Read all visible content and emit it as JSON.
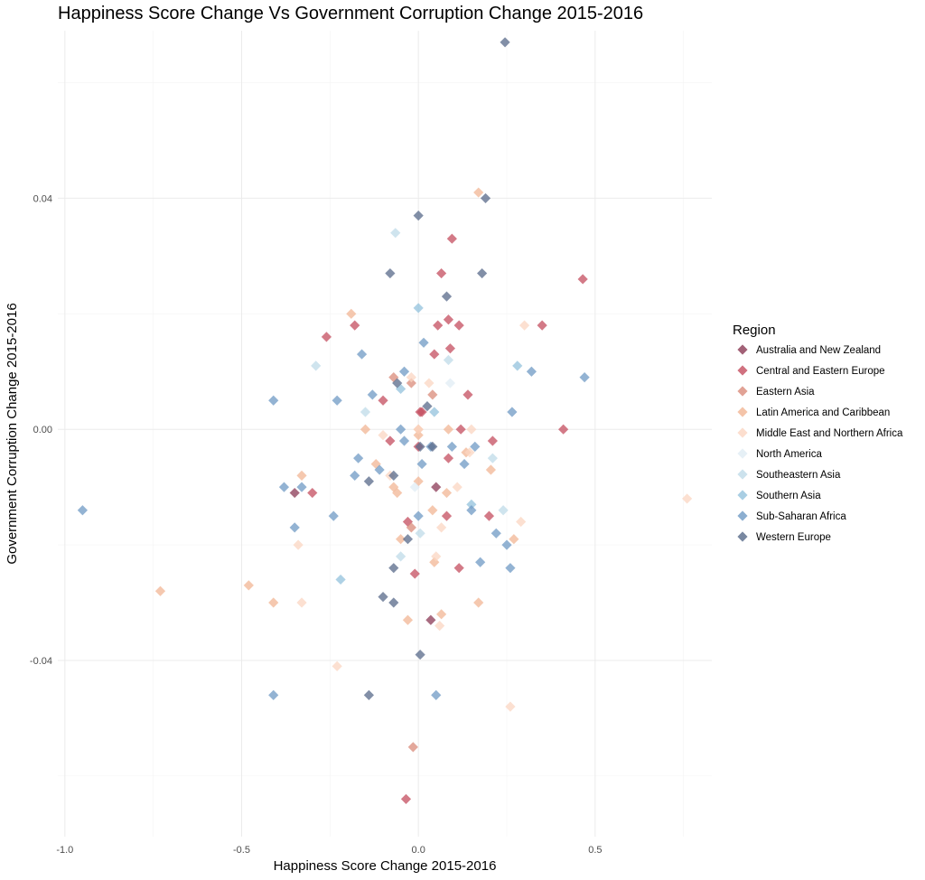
{
  "chart_data": {
    "type": "scatter",
    "title": "Happiness Score Change Vs Government Corruption Change 2015-2016",
    "xlabel": "Happiness Score Change 2015-2016",
    "ylabel": "Government Corruption Change 2015-2016",
    "xlim": [
      -1.02,
      0.83
    ],
    "ylim": [
      -0.0705,
      0.069
    ],
    "x_ticks": [
      -1.0,
      -0.5,
      0.0,
      0.5
    ],
    "x_tick_labels": [
      "-1.0",
      "-0.5",
      "0.0",
      "0.5"
    ],
    "y_ticks": [
      -0.04,
      0.0,
      0.04
    ],
    "y_tick_labels": [
      "-0.04",
      "0.00",
      "0.04"
    ],
    "grid": true,
    "marker": "diamond",
    "legend": {
      "title": "Region",
      "position": "right"
    },
    "series": [
      {
        "name": "Australia and New Zealand",
        "color": "#8b3a55",
        "points": [
          [
            -0.35,
            -0.011
          ],
          [
            0.05,
            -0.01
          ],
          [
            0.035,
            -0.033
          ]
        ]
      },
      {
        "name": "Central and Eastern Europe",
        "color": "#c44d5f",
        "points": [
          [
            -0.26,
            0.016
          ],
          [
            -0.18,
            0.018
          ],
          [
            -0.3,
            -0.011
          ],
          [
            -0.1,
            0.005
          ],
          [
            -0.08,
            -0.002
          ],
          [
            0.005,
            0.003
          ],
          [
            0.01,
            0.003
          ],
          [
            0.0,
            -0.003
          ],
          [
            0.045,
            0.013
          ],
          [
            0.055,
            0.018
          ],
          [
            0.065,
            0.027
          ],
          [
            0.085,
            0.019
          ],
          [
            0.09,
            0.014
          ],
          [
            0.095,
            0.033
          ],
          [
            0.115,
            0.018
          ],
          [
            0.085,
            -0.005
          ],
          [
            0.12,
            -0.0
          ],
          [
            0.14,
            0.006
          ],
          [
            0.21,
            -0.002
          ],
          [
            0.2,
            -0.015
          ],
          [
            0.35,
            0.018
          ],
          [
            0.41,
            0.0
          ],
          [
            0.465,
            0.026
          ],
          [
            0.115,
            -0.024
          ],
          [
            -0.01,
            -0.025
          ],
          [
            -0.03,
            -0.016
          ],
          [
            -0.035,
            -0.064
          ],
          [
            0.08,
            -0.015
          ]
        ]
      },
      {
        "name": "Eastern Asia",
        "color": "#d98b7a",
        "points": [
          [
            -0.07,
            0.009
          ],
          [
            -0.02,
            0.008
          ],
          [
            -0.015,
            -0.055
          ],
          [
            -0.02,
            -0.017
          ],
          [
            0.04,
            0.006
          ]
        ]
      },
      {
        "name": "Latin America and Caribbean",
        "color": "#f1b594",
        "points": [
          [
            -0.73,
            -0.028
          ],
          [
            -0.48,
            -0.027
          ],
          [
            -0.41,
            -0.03
          ],
          [
            -0.33,
            -0.008
          ],
          [
            -0.19,
            0.02
          ],
          [
            -0.15,
            -0.0
          ],
          [
            -0.12,
            -0.006
          ],
          [
            -0.07,
            -0.01
          ],
          [
            -0.06,
            -0.011
          ],
          [
            -0.05,
            -0.019
          ],
          [
            -0.03,
            -0.033
          ],
          [
            0.0,
            -0.001
          ],
          [
            0.0,
            0.0
          ],
          [
            0.0,
            -0.009
          ],
          [
            0.04,
            -0.014
          ],
          [
            0.065,
            -0.032
          ],
          [
            0.08,
            -0.011
          ],
          [
            0.085,
            0.0
          ],
          [
            0.135,
            -0.004
          ],
          [
            0.17,
            0.041
          ],
          [
            0.17,
            -0.03
          ],
          [
            0.205,
            -0.007
          ],
          [
            0.27,
            -0.019
          ],
          [
            0.045,
            -0.023
          ]
        ]
      },
      {
        "name": "Middle East and Northern Africa",
        "color": "#fbd6c2",
        "points": [
          [
            -0.34,
            -0.02
          ],
          [
            -0.33,
            -0.03
          ],
          [
            -0.23,
            -0.041
          ],
          [
            -0.1,
            -0.001
          ],
          [
            -0.08,
            -0.008
          ],
          [
            -0.02,
            0.009
          ],
          [
            0.0,
            -0.0
          ],
          [
            0.05,
            -0.022
          ],
          [
            0.06,
            -0.034
          ],
          [
            0.065,
            -0.017
          ],
          [
            0.11,
            -0.01
          ],
          [
            0.145,
            -0.004
          ],
          [
            0.15,
            0.0
          ],
          [
            0.26,
            -0.048
          ],
          [
            0.29,
            -0.016
          ],
          [
            0.3,
            0.018
          ],
          [
            0.76,
            -0.012
          ],
          [
            0.03,
            0.008
          ]
        ]
      },
      {
        "name": "North America",
        "color": "#e0ecf4",
        "points": [
          [
            0.09,
            0.008
          ],
          [
            -0.01,
            -0.01
          ]
        ]
      },
      {
        "name": "Southeastern Asia",
        "color": "#bfdbe8",
        "points": [
          [
            -0.29,
            0.011
          ],
          [
            -0.15,
            0.003
          ],
          [
            -0.065,
            0.034
          ],
          [
            -0.05,
            -0.022
          ],
          [
            0.005,
            -0.018
          ],
          [
            0.085,
            0.012
          ],
          [
            0.21,
            -0.005
          ],
          [
            0.24,
            -0.014
          ]
        ]
      },
      {
        "name": "Southern Asia",
        "color": "#93c2dc",
        "points": [
          [
            -0.22,
            -0.026
          ],
          [
            -0.05,
            0.007
          ],
          [
            0.0,
            0.021
          ],
          [
            0.045,
            0.003
          ],
          [
            0.15,
            -0.013
          ],
          [
            0.28,
            0.011
          ]
        ]
      },
      {
        "name": "Sub-Saharan Africa",
        "color": "#6f9ac4",
        "points": [
          [
            -0.95,
            -0.014
          ],
          [
            -0.41,
            0.005
          ],
          [
            -0.41,
            -0.046
          ],
          [
            -0.38,
            -0.01
          ],
          [
            -0.35,
            -0.017
          ],
          [
            -0.33,
            -0.01
          ],
          [
            -0.24,
            -0.015
          ],
          [
            -0.23,
            0.005
          ],
          [
            -0.18,
            -0.008
          ],
          [
            -0.17,
            -0.005
          ],
          [
            -0.16,
            0.013
          ],
          [
            -0.13,
            0.006
          ],
          [
            -0.11,
            -0.007
          ],
          [
            -0.05,
            0.0
          ],
          [
            -0.04,
            0.01
          ],
          [
            -0.04,
            -0.002
          ],
          [
            0.0,
            -0.015
          ],
          [
            0.01,
            -0.006
          ],
          [
            0.015,
            0.015
          ],
          [
            0.035,
            -0.003
          ],
          [
            0.05,
            -0.046
          ],
          [
            0.095,
            -0.003
          ],
          [
            0.13,
            -0.006
          ],
          [
            0.15,
            -0.014
          ],
          [
            0.16,
            -0.003
          ],
          [
            0.175,
            -0.023
          ],
          [
            0.22,
            -0.018
          ],
          [
            0.25,
            -0.02
          ],
          [
            0.26,
            -0.024
          ],
          [
            0.265,
            0.003
          ],
          [
            0.32,
            0.01
          ],
          [
            0.47,
            0.009
          ]
        ]
      },
      {
        "name": "Western Europe",
        "color": "#586a8a",
        "points": [
          [
            0.245,
            0.067
          ],
          [
            0.19,
            0.04
          ],
          [
            0.18,
            0.027
          ],
          [
            0.0,
            0.037
          ],
          [
            -0.08,
            0.027
          ],
          [
            0.08,
            0.023
          ],
          [
            -0.06,
            0.008
          ],
          [
            0.025,
            0.004
          ],
          [
            0.04,
            -0.003
          ],
          [
            0.005,
            -0.003
          ],
          [
            -0.07,
            -0.008
          ],
          [
            -0.07,
            -0.024
          ],
          [
            -0.1,
            -0.029
          ],
          [
            -0.07,
            -0.03
          ],
          [
            -0.03,
            -0.019
          ],
          [
            0.005,
            -0.039
          ],
          [
            -0.14,
            -0.046
          ],
          [
            -0.14,
            -0.009
          ]
        ]
      }
    ]
  }
}
